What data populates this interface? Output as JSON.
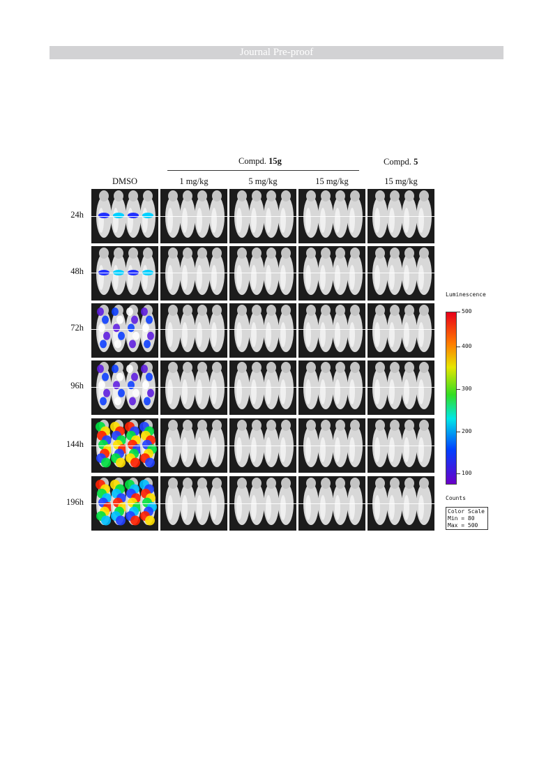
{
  "banner": "Journal Pre-proof",
  "headers": {
    "group1_prefix": "Compd.",
    "group1_bold": "15g",
    "group2_prefix": "Compd.",
    "group2_bold": "5"
  },
  "columns": [
    "DMSO",
    "1 mg/kg",
    "5 mg/kg",
    "15 mg/kg",
    "15 mg/kg"
  ],
  "rows": [
    "24h",
    "48h",
    "72h",
    "96h",
    "144h",
    "196h"
  ],
  "legend": {
    "title": "Luminescence",
    "ticks": [
      "500",
      "400",
      "300",
      "200",
      "100"
    ],
    "counts_label": "Counts",
    "scale_title": "Color Scale",
    "scale_min": "Min = 80",
    "scale_max": "Max = 500"
  },
  "dmso_signal_levels": [
    "low",
    "low",
    "medium",
    "medium",
    "high",
    "very-high"
  ],
  "colors": {
    "banner_bg": "#d2d2d4",
    "panel_bg": "#1c1c1c"
  }
}
